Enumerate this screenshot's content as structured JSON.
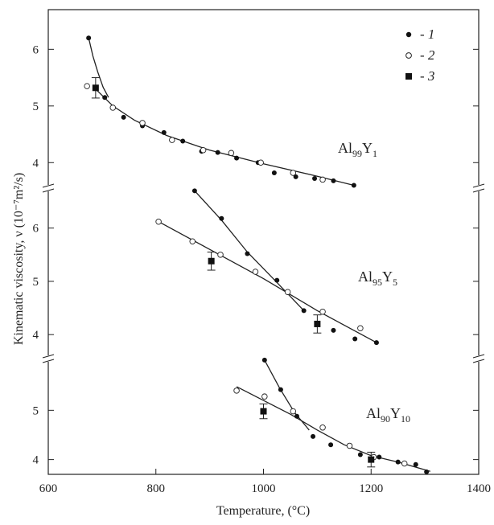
{
  "chart_data": {
    "type": "scatter",
    "xlabel": "Temperature, (°C)",
    "ylabel": "Kinematic viscosity, ν (10⁻⁷m²/s)",
    "xlim": [
      600,
      1400
    ],
    "x_ticks": [
      "600",
      "800",
      "1000",
      "1200",
      "1400"
    ],
    "legend": {
      "placement": "top-right",
      "entries": [
        {
          "label": "- 1",
          "marker": "filled-circle"
        },
        {
          "label": "- 2",
          "marker": "open-circle"
        },
        {
          "label": "- 3",
          "marker": "filled-square"
        }
      ]
    },
    "panels": [
      {
        "label_main": "Al",
        "label_sub1": "99",
        "label_mid": "Y",
        "label_sub2": "1",
        "ylim": [
          3.55,
          6.7
        ],
        "y_ticks": [
          4,
          5,
          6
        ],
        "series": [
          {
            "name": "- 1",
            "marker": "filled-circle",
            "points": [
              [
                675,
                6.2
              ],
              [
                705,
                5.15
              ],
              [
                740,
                4.8
              ],
              [
                775,
                4.65
              ],
              [
                815,
                4.53
              ],
              [
                850,
                4.38
              ],
              [
                885,
                4.2
              ],
              [
                915,
                4.18
              ],
              [
                950,
                4.08
              ],
              [
                990,
                4.0
              ],
              [
                1020,
                3.82
              ],
              [
                1060,
                3.75
              ],
              [
                1095,
                3.72
              ],
              [
                1130,
                3.68
              ],
              [
                1168,
                3.6
              ]
            ]
          },
          {
            "name": "- 2",
            "marker": "open-circle",
            "points": [
              [
                672,
                5.35
              ],
              [
                720,
                4.97
              ],
              [
                775,
                4.7
              ],
              [
                830,
                4.4
              ],
              [
                888,
                4.22
              ],
              [
                940,
                4.17
              ],
              [
                995,
                4.0
              ],
              [
                1055,
                3.82
              ],
              [
                1110,
                3.7
              ]
            ]
          },
          {
            "name": "- 3",
            "marker": "filled-square",
            "points": [
              [
                688,
                5.32,
                0.18
              ]
            ]
          }
        ],
        "fit_lines": [
          [
            [
              675,
              6.2
            ],
            [
              683,
              5.88
            ],
            [
              692,
              5.6
            ],
            [
              702,
              5.33
            ],
            [
              712,
              5.15
            ]
          ],
          [
            [
              690,
              5.28
            ],
            [
              720,
              5.0
            ],
            [
              760,
              4.75
            ],
            [
              820,
              4.48
            ],
            [
              900,
              4.22
            ],
            [
              1000,
              3.98
            ],
            [
              1100,
              3.76
            ],
            [
              1168,
              3.6
            ]
          ]
        ]
      },
      {
        "label_main": "Al",
        "label_sub1": "95",
        "label_mid": "Y",
        "label_sub2": "5",
        "ylim": [
          3.55,
          6.75
        ],
        "y_ticks": [
          4,
          5,
          6
        ],
        "series": [
          {
            "name": "- 1",
            "marker": "filled-circle",
            "points": [
              [
                872,
                6.7
              ],
              [
                922,
                6.18
              ],
              [
                970,
                5.52
              ],
              [
                1025,
                5.02
              ],
              [
                1075,
                4.45
              ],
              [
                1130,
                4.08
              ],
              [
                1170,
                3.92
              ],
              [
                1210,
                3.85
              ]
            ]
          },
          {
            "name": "- 2",
            "marker": "open-circle",
            "points": [
              [
                805,
                6.12
              ],
              [
                868,
                5.75
              ],
              [
                920,
                5.5
              ],
              [
                985,
                5.18
              ],
              [
                1045,
                4.8
              ],
              [
                1110,
                4.43
              ],
              [
                1180,
                4.12
              ]
            ]
          },
          {
            "name": "- 3",
            "marker": "filled-square",
            "points": [
              [
                903,
                5.38,
                0.17
              ],
              [
                1100,
                4.2,
                0.17
              ]
            ]
          }
        ],
        "fit_lines": [
          [
            [
              872,
              6.7
            ],
            [
              922,
              6.15
            ],
            [
              970,
              5.55
            ],
            [
              1025,
              4.98
            ],
            [
              1075,
              4.45
            ]
          ],
          [
            [
              805,
              6.12
            ],
            [
              900,
              5.6
            ],
            [
              1000,
              5.05
            ],
            [
              1100,
              4.45
            ],
            [
              1210,
              3.85
            ]
          ]
        ]
      },
      {
        "label_main": "Al",
        "label_sub1": "90",
        "label_mid": "Y",
        "label_sub2": "10",
        "ylim": [
          3.7,
          6.05
        ],
        "y_ticks": [
          4,
          5
        ],
        "series": [
          {
            "name": "- 1",
            "marker": "filled-circle",
            "points": [
              [
                1002,
                6.02
              ],
              [
                1032,
                5.42
              ],
              [
                1062,
                4.88
              ],
              [
                1092,
                4.47
              ],
              [
                1125,
                4.3
              ],
              [
                1180,
                4.1
              ],
              [
                1215,
                4.05
              ],
              [
                1250,
                3.95
              ],
              [
                1283,
                3.9
              ],
              [
                1303,
                3.75
              ]
            ]
          },
          {
            "name": "- 2",
            "marker": "open-circle",
            "points": [
              [
                950,
                5.4
              ],
              [
                1002,
                5.28
              ],
              [
                1055,
                4.98
              ],
              [
                1110,
                4.65
              ],
              [
                1160,
                4.28
              ],
              [
                1205,
                4.05
              ],
              [
                1262,
                3.92
              ]
            ]
          },
          {
            "name": "- 3",
            "marker": "filled-square",
            "points": [
              [
                1000,
                4.98,
                0.15
              ],
              [
                1200,
                4.0,
                0.15
              ]
            ]
          }
        ],
        "fit_lines": [
          [
            [
              1002,
              6.02
            ],
            [
              1030,
              5.45
            ],
            [
              1058,
              4.95
            ],
            [
              1085,
              4.6
            ]
          ],
          [
            [
              950,
              5.48
            ],
            [
              1000,
              5.2
            ],
            [
              1050,
              4.92
            ],
            [
              1100,
              4.6
            ],
            [
              1150,
              4.3
            ],
            [
              1200,
              4.08
            ],
            [
              1250,
              3.95
            ],
            [
              1310,
              3.76
            ]
          ]
        ]
      }
    ]
  }
}
